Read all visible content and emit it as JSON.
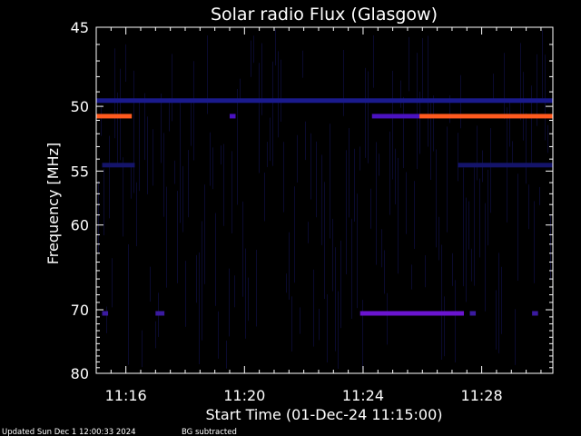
{
  "chart_data": {
    "type": "heatmap",
    "title": "Solar radio Flux (Glasgow)",
    "xlabel": "Start Time (01-Dec-24 11:15:00)",
    "ylabel": "Frequency [MHz]",
    "x_range_minutes": [
      15.0,
      30.4
    ],
    "y_range_mhz": [
      45,
      80
    ],
    "x_ticks": [
      {
        "minute": 16,
        "label": "11:16"
      },
      {
        "minute": 20,
        "label": "11:20"
      },
      {
        "minute": 24,
        "label": "11:24"
      },
      {
        "minute": 28,
        "label": "11:28"
      }
    ],
    "y_ticks": [
      {
        "mhz": 45,
        "label": "45"
      },
      {
        "mhz": 50,
        "label": "50"
      },
      {
        "mhz": 55,
        "label": "55"
      },
      {
        "mhz": 60,
        "label": "60"
      },
      {
        "mhz": 70,
        "label": "70"
      },
      {
        "mhz": 80,
        "label": "80"
      }
    ],
    "bands": [
      {
        "mhz": 50.7,
        "color": "#ff5a1e",
        "segments": [
          [
            15.0,
            16.2
          ],
          [
            25.9,
            30.4
          ]
        ]
      },
      {
        "mhz": 50.7,
        "color": "#4a12c0",
        "segments": [
          [
            19.5,
            19.7
          ],
          [
            24.3,
            25.9
          ]
        ]
      },
      {
        "mhz": 49.6,
        "color": "#1a1a8c",
        "segments": [
          [
            15.0,
            30.4
          ]
        ]
      },
      {
        "mhz": 54.5,
        "color": "#14146a",
        "segments": [
          [
            15.2,
            16.3
          ],
          [
            27.2,
            30.4
          ]
        ]
      },
      {
        "mhz": 70.5,
        "color": "#6a14d0",
        "segments": [
          [
            23.9,
            27.4
          ]
        ]
      },
      {
        "mhz": 70.5,
        "color": "#3a1aa0",
        "segments": [
          [
            15.2,
            15.4
          ],
          [
            17.0,
            17.3
          ],
          [
            27.6,
            27.8
          ],
          [
            29.7,
            29.9
          ]
        ]
      }
    ]
  },
  "footer": {
    "updated": "Updated Sun Dec  1 12:00:33 2024",
    "note": "BG subtracted"
  }
}
